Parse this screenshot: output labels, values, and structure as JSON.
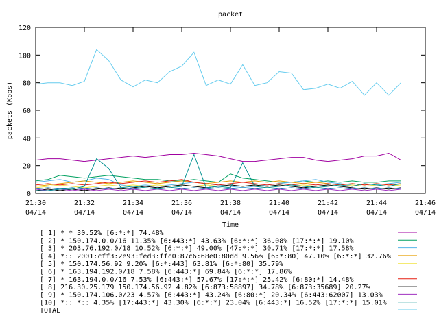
{
  "chart_data": {
    "type": "line",
    "title": "packet",
    "xlabel": "Time",
    "ylabel": "packets (Kpps)",
    "ylim": [
      0,
      120
    ],
    "yticks": [
      0,
      20,
      40,
      60,
      80,
      100,
      120
    ],
    "xlim": [
      "21:30",
      "21:46"
    ],
    "xticks": [
      {
        "time": "21:30",
        "date": "04/14"
      },
      {
        "time": "21:32",
        "date": "04/14"
      },
      {
        "time": "21:34",
        "date": "04/14"
      },
      {
        "time": "21:36",
        "date": "04/14"
      },
      {
        "time": "21:38",
        "date": "04/14"
      },
      {
        "time": "21:40",
        "date": "04/14"
      },
      {
        "time": "21:42",
        "date": "04/14"
      },
      {
        "time": "21:44",
        "date": "04/14"
      },
      {
        "time": "21:46",
        "date": "04/14"
      }
    ],
    "grid": false,
    "legend_position": "bottom",
    "x": [
      "21:30:00",
      "21:30:30",
      "21:31:00",
      "21:31:30",
      "21:32:00",
      "21:32:30",
      "21:33:00",
      "21:33:30",
      "21:34:00",
      "21:34:30",
      "21:35:00",
      "21:35:30",
      "21:36:00",
      "21:36:30",
      "21:37:00",
      "21:37:30",
      "21:38:00",
      "21:38:30",
      "21:39:00",
      "21:39:30",
      "21:40:00",
      "21:40:30",
      "21:41:00",
      "21:41:30",
      "21:42:00",
      "21:42:30",
      "21:43:00",
      "21:43:30",
      "21:44:00",
      "21:44:30",
      "21:45:00"
    ],
    "series": [
      {
        "name": "[ 1] * * 30.52%  [6:*:*] 74.48%",
        "color": "#a000a0",
        "values": [
          24,
          25,
          25,
          24,
          23,
          24,
          25,
          26,
          27,
          26,
          27,
          28,
          28,
          29,
          28,
          27,
          25,
          23,
          23,
          24,
          25,
          26,
          26,
          24,
          23,
          24,
          25,
          27,
          27,
          29,
          24
        ]
      },
      {
        "name": "[ 2] * 150.174.0.0/16 11.35%  [6:443:*] 43.63% [6:*:*] 36.08% [17:*:*] 19.10%",
        "color": "#00a060",
        "values": [
          9,
          10,
          13,
          12,
          11,
          12,
          13,
          12,
          11,
          10,
          10,
          9,
          9,
          10,
          9,
          8,
          14,
          11,
          10,
          9,
          8,
          8,
          9,
          8,
          9,
          8,
          9,
          8,
          8,
          9,
          9
        ]
      },
      {
        "name": "[ 3] * 203.76.192.0/18 10.52%  [6:*:*] 49.00% [47:*:*] 30.71% [17:*:*] 17.58%",
        "color": "#56b4e9",
        "values": [
          8,
          9,
          10,
          8,
          9,
          11,
          10,
          6,
          5,
          6,
          5,
          6,
          7,
          8,
          7,
          6,
          5,
          4,
          5,
          6,
          7,
          8,
          9,
          10,
          8,
          7,
          6,
          5,
          6,
          7,
          8
        ]
      },
      {
        "name": "[ 4] *:: 2001:cff3:2e93:fed3:ffc0:87c6:68e0:80dd 9.56%  [6:*:80] 47.10% [6:*:*] 32.76%",
        "color": "#e69f00",
        "values": [
          5,
          6,
          7,
          8,
          9,
          8,
          7,
          8,
          9,
          8,
          7,
          8,
          9,
          8,
          7,
          8,
          9,
          8,
          9,
          8,
          9,
          8,
          7,
          8,
          7,
          6,
          7,
          6,
          7,
          6,
          7
        ]
      },
      {
        "name": "[ 5] * 150.174.56.92 9.20%  [6:*:443] 63.81% [6:*:80] 35.79%",
        "color": "#f0e442",
        "values": [
          4,
          5,
          6,
          5,
          4,
          5,
          6,
          5,
          6,
          5,
          6,
          5,
          6,
          5,
          6,
          5,
          6,
          5,
          6,
          5,
          6,
          5,
          6,
          5,
          6,
          5,
          6,
          5,
          6,
          5,
          6
        ]
      },
      {
        "name": "[ 6] * 163.194.192.0/18 7.58%  [6:443:*] 69.84% [6:*:*] 17.86%",
        "color": "#0072b2",
        "values": [
          3,
          4,
          3,
          4,
          3,
          4,
          3,
          4,
          3,
          4,
          3,
          4,
          3,
          4,
          3,
          4,
          3,
          4,
          3,
          4,
          3,
          4,
          3,
          4,
          3,
          4,
          3,
          4,
          3,
          4,
          3
        ]
      },
      {
        "name": "[ 7] * 163.194.0.0/16 7.53%  [6:443:*] 57.67% [17:*:*] 25.42% [6:80:*] 14.48%",
        "color": "#e51e10",
        "values": [
          6,
          7,
          6,
          7,
          6,
          7,
          8,
          7,
          8,
          9,
          8,
          9,
          10,
          8,
          7,
          6,
          7,
          8,
          7,
          6,
          7,
          6,
          7,
          6,
          7,
          6,
          7,
          6,
          7,
          6,
          7
        ]
      },
      {
        "name": "[ 8] 216.30.25.179 150.174.56.92 4.82%  [6:873:58897] 34.78% [6:873:35689] 20.27%",
        "color": "#000000",
        "values": [
          2,
          3,
          2,
          3,
          2,
          3,
          4,
          3,
          4,
          5,
          4,
          5,
          6,
          5,
          4,
          5,
          6,
          5,
          6,
          5,
          6,
          5,
          4,
          5,
          6,
          5,
          4,
          3,
          4,
          3,
          4
        ]
      },
      {
        "name": "[ 9] * 150.174.106.0/23 4.57%  [6:443:*] 43.24% [6:80:*] 20.34% [6:443:62007] 13.03%",
        "color": "#a030c0",
        "values": [
          3,
          2,
          3,
          2,
          3,
          2,
          3,
          2,
          3,
          2,
          3,
          2,
          3,
          2,
          3,
          2,
          3,
          2,
          3,
          2,
          3,
          2,
          3,
          2,
          3,
          2,
          3,
          2,
          3,
          2,
          3
        ]
      },
      {
        "name": "[10] *:: *:: 4.35%  [17:443:*] 43.30% [6:*:*] 23.04% [6:443:*] 16.52% [17:*:*] 15.01%",
        "color": "#009090",
        "values": [
          2,
          2,
          3,
          3,
          5,
          25,
          18,
          4,
          5,
          4,
          3,
          4,
          5,
          28,
          4,
          5,
          4,
          22,
          5,
          4,
          5,
          6,
          5,
          4,
          5,
          6,
          5,
          7,
          6,
          5,
          7
        ]
      },
      {
        "name": "TOTAL",
        "color": "#66ccee",
        "values": [
          79,
          80,
          80,
          78,
          81,
          104,
          96,
          82,
          77,
          82,
          80,
          88,
          92,
          102,
          78,
          82,
          79,
          93,
          78,
          80,
          88,
          87,
          75,
          76,
          79,
          76,
          81,
          71,
          80,
          71,
          80
        ]
      }
    ]
  }
}
